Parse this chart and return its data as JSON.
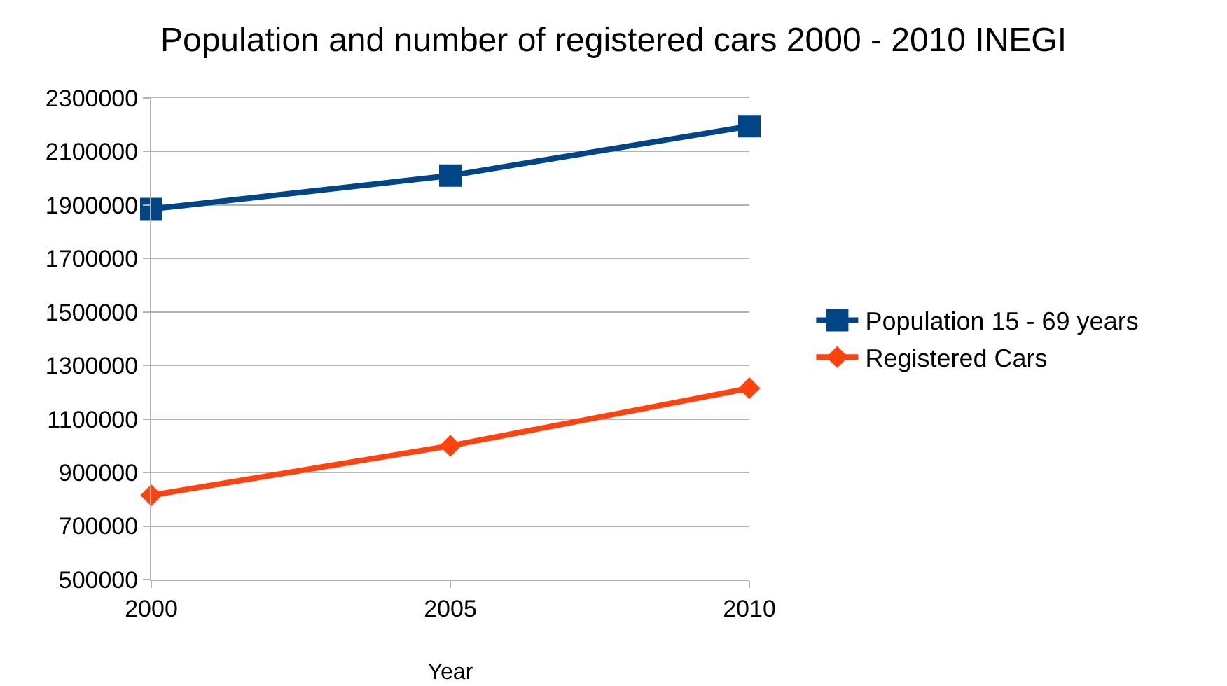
{
  "chart_data": {
    "type": "line",
    "title": "Population and number of registered cars 2000 - 2010 INEGI",
    "xlabel": "Year",
    "x": [
      2000,
      2005,
      2010
    ],
    "series": [
      {
        "name": "Population 15 - 69 years",
        "color": "#004586",
        "marker": "square",
        "values": [
          1885000,
          2010000,
          2195000
        ]
      },
      {
        "name": "Registered Cars",
        "color": "#ff420e",
        "marker": "diamond",
        "values": [
          815000,
          1000000,
          1215000
        ]
      }
    ],
    "xlim": [
      2000,
      2010
    ],
    "xticks": [
      2000,
      2005,
      2010
    ],
    "ylim": [
      500000,
      2300000
    ],
    "yticks": [
      500000,
      700000,
      900000,
      1100000,
      1300000,
      1500000,
      1700000,
      1900000,
      2100000,
      2300000
    ],
    "grid": "y",
    "legend": "right",
    "line_style": "solid"
  }
}
